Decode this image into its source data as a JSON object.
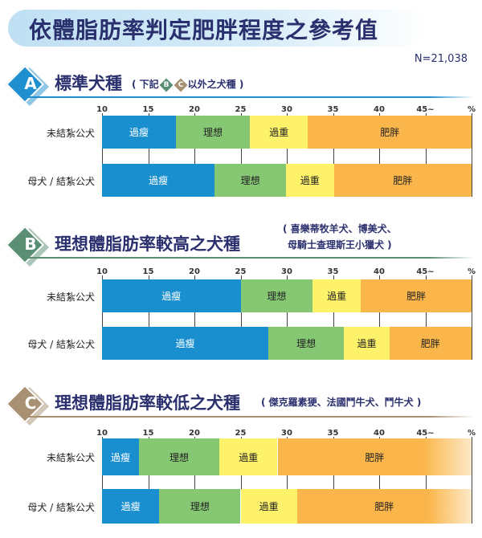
{
  "title": "依體脂肪率判定肥胖程度之參考值",
  "n_label": "N=21,038",
  "chart_data": [
    {
      "type": "bar",
      "stacked": true,
      "orientation": "horizontal",
      "badge": "A",
      "title": "標準犬種",
      "subtitle_parts": [
        "( 下記",
        "B",
        "C",
        "以外之犬種 )"
      ],
      "accent": "#1f8fd0",
      "xlim": [
        10,
        50
      ],
      "tick_labels": [
        "10",
        "15",
        "20",
        "25",
        "30",
        "35",
        "40",
        "45~",
        "%"
      ],
      "categories": [
        "未結紮公犬",
        "母犬 / 結紮公犬"
      ],
      "segment_labels": [
        "過瘦",
        "理想",
        "過重",
        "肥胖"
      ],
      "boundaries": [
        [
          18,
          26,
          32.3
        ],
        [
          22.2,
          29.9,
          35.1
        ]
      ]
    },
    {
      "type": "bar",
      "stacked": true,
      "orientation": "horizontal",
      "badge": "B",
      "title": "理想體脂肪率較高之犬種",
      "subtitle_lines": [
        "( 喜樂蒂牧羊犬、博美犬、",
        "母騎士查理斯王小獵犬 )"
      ],
      "accent": "#5a8f74",
      "xlim": [
        10,
        50
      ],
      "tick_labels": [
        "10",
        "15",
        "20",
        "25",
        "30",
        "35",
        "40",
        "45~",
        "%"
      ],
      "categories": [
        "未結紮公犬",
        "母犬 / 結紮公犬"
      ],
      "segment_labels": [
        "過瘦",
        "理想",
        "過重",
        "肥胖"
      ],
      "boundaries": [
        [
          25,
          32.8,
          38
        ],
        [
          28,
          36.2,
          41.1
        ]
      ]
    },
    {
      "type": "bar",
      "stacked": true,
      "orientation": "horizontal",
      "badge": "C",
      "title": "理想體脂肪率較低之犬種",
      "subtitle_lines": [
        "( 傑克羅素㹴、法國鬥牛犬、鬥牛犬 )"
      ],
      "accent": "#a89072",
      "xlim": [
        10,
        50
      ],
      "tick_labels": [
        "10",
        "15",
        "20",
        "25",
        "30",
        "35",
        "40",
        "45~",
        "%"
      ],
      "categories": [
        "未結紮公犬",
        "母犬 / 結紮公犬"
      ],
      "segment_labels": [
        "過瘦",
        "理想",
        "過重",
        "肥胖"
      ],
      "boundaries": [
        [
          14,
          22.7,
          29
        ],
        [
          16.2,
          25,
          31.1
        ]
      ]
    }
  ],
  "colors": {
    "underweight": "#1a8fd0",
    "ideal": "#86c774",
    "overweight": "#fdf26a",
    "obese": "#fbb64b"
  }
}
